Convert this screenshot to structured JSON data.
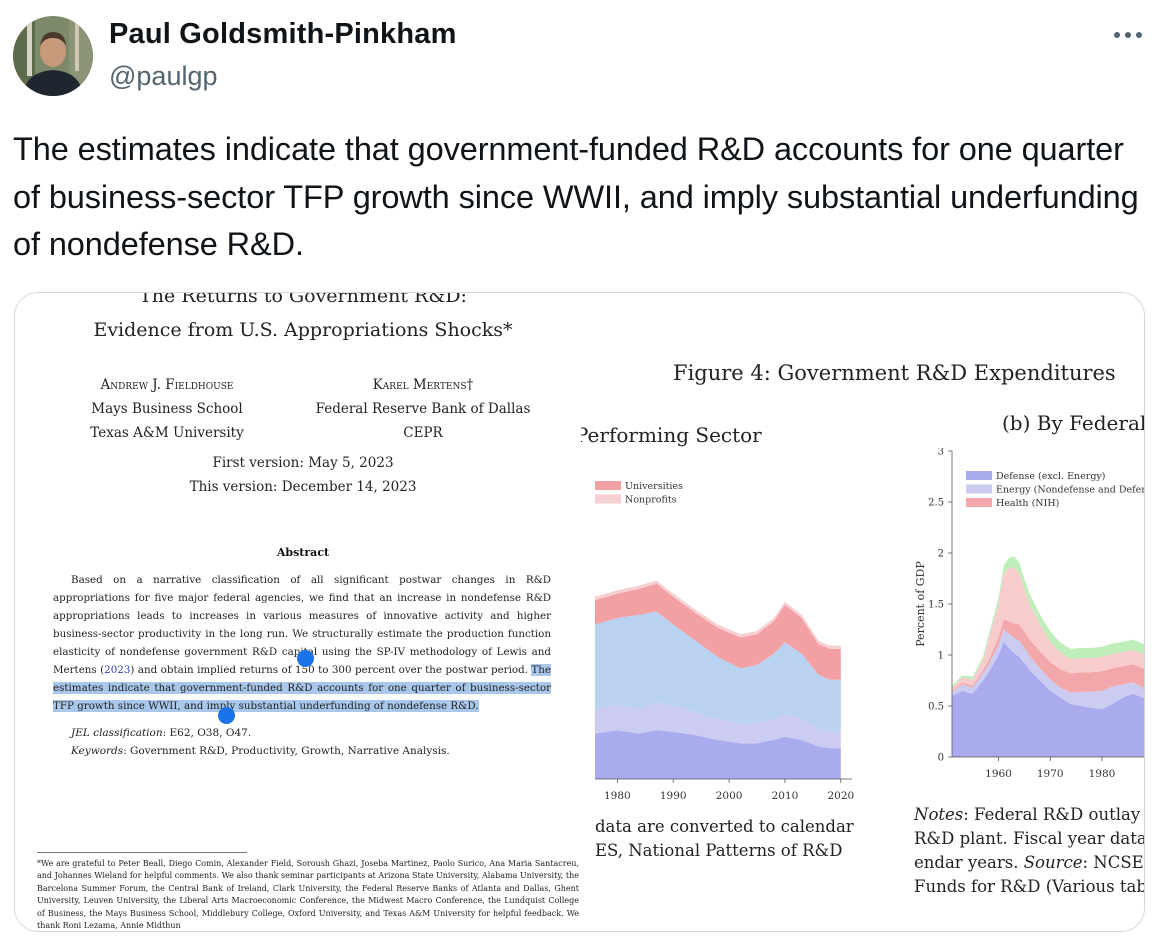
{
  "author": {
    "name": "Paul Goldsmith-Pinkham",
    "handle": "@paulgp"
  },
  "tweet": {
    "text": "The estimates indicate that government-funded R&D accounts for one quarter of business-sector TFP growth since WWII, and imply substantial underfunding of nondefense R&D."
  },
  "icons": {
    "more": "more-horizontal-icon",
    "avatar": "profile-photo"
  },
  "colors": {
    "highlight": "#a9c7ea",
    "handle": "#1a73e8",
    "border": "#cfd9de",
    "muted": "#536471"
  },
  "paper": {
    "title_line1": "The Returns to Government R&D:",
    "title_line2": "Evidence from U.S. Appropriations Shocks*",
    "author1": {
      "name": "Andrew J. Fieldhouse",
      "affil1": "Mays Business School",
      "affil2": "Texas A&M University"
    },
    "author2": {
      "name": "Karel Mertens†",
      "affil1": "Federal Reserve Bank of Dallas",
      "affil2": "CEPR"
    },
    "first_version": "First version: May 5, 2023",
    "this_version": "This version: December 14, 2023",
    "abstract_heading": "Abstract",
    "abstract_part1": "Based on a narrative classification of all significant postwar changes in R&D appropriations for five major federal agencies, we find that an increase in nondefense R&D appropriations leads to increases in various measures of innovative activity and higher business-sector productivity in the long run. We structurally estimate the production function elasticity of nondefense government R&D capital using the SP-IV methodology of Lewis and Mertens (",
    "abstract_cite": "2023",
    "abstract_part2": ") and obtain implied returns of 150 to 300 percent over the postwar period. ",
    "abstract_highlight": "The estimates indicate that government-funded R&D accounts for one quarter of business-sector TFP growth since WWII, and imply substantial underfunding of nondefense R&D.",
    "jel_label": "JEL classification",
    "jel_value": ": E62, O38, O47.",
    "keywords_label": "Keywords",
    "keywords_value": ": Government R&D, Productivity, Growth, Narrative Analysis.",
    "footnote": "*We are grateful to Peter Beall, Diego Comin, Alexander Field, Soroush Ghazi, Joseba Martinez, Paolo Surico, Ana Maria Santacreu, and Johannes Wieland for helpful comments. We also thank seminar participants at Arizona State University, Alabama University, the Barcelona Summer Forum, the Central Bank of Ireland, Clark University, the Federal Reserve Banks of Atlanta and Dallas, Ghent University, Leuven University, the Liberal Arts Macroeconomic Conference, the Midwest Macro Conference, the Lundquist College of Business, the Mays Business School, Middlebury College, Oxford University, and Texas A&M University for helpful feedback. We thank Roni Lezama, Annie Midthun"
  },
  "figure": {
    "title": "Figure 4: Government R&D Expenditures",
    "panel_a_title": "Performing Sector",
    "panel_b_title": "(b) By Federal",
    "notes_left_line1": "data are converted to calendar",
    "notes_left_line2": "ES, National Patterns of R&D",
    "notes_right_line1_label": "Notes",
    "notes_right_line1": ": Federal R&D outlay",
    "notes_right_line2": "R&D plant. Fiscal year data",
    "notes_right_line3_a": "endar years. ",
    "notes_right_line3_label": "Source",
    "notes_right_line3_b": ": NCSE",
    "notes_right_line4": "Funds for R&D (Various tab"
  },
  "chart_data": [
    {
      "type": "area",
      "title": "Performing Sector",
      "xlabel": "",
      "ylabel": "",
      "x_ticks": [
        "1980",
        "1990",
        "2000",
        "2010",
        "2020"
      ],
      "xlim": [
        1976,
        2022
      ],
      "ylim": [
        0,
        1.5
      ],
      "legend": {
        "position": "top-left",
        "entries": [
          "Universities",
          "Nonprofits"
        ]
      },
      "x": [
        1976,
        1980,
        1984,
        1987,
        1990,
        1994,
        1998,
        2002,
        2005,
        2008,
        2010,
        2013,
        2016,
        2018,
        2020
      ],
      "series": [
        {
          "name": "",
          "color": "#aaaaee",
          "values": [
            0.28,
            0.3,
            0.28,
            0.3,
            0.29,
            0.27,
            0.24,
            0.22,
            0.22,
            0.24,
            0.26,
            0.24,
            0.2,
            0.19,
            0.19
          ]
        },
        {
          "name": "",
          "color": "#ccccf2",
          "values": [
            0.15,
            0.16,
            0.15,
            0.17,
            0.16,
            0.14,
            0.13,
            0.12,
            0.12,
            0.13,
            0.14,
            0.13,
            0.11,
            0.1,
            0.1
          ]
        },
        {
          "name": "",
          "color": "#b9d2f2",
          "values": [
            0.52,
            0.53,
            0.58,
            0.56,
            0.5,
            0.44,
            0.38,
            0.34,
            0.36,
            0.4,
            0.44,
            0.4,
            0.33,
            0.32,
            0.32
          ]
        },
        {
          "name": "Universities",
          "color": "#f2a0a4",
          "values": [
            0.15,
            0.15,
            0.16,
            0.17,
            0.17,
            0.17,
            0.18,
            0.19,
            0.19,
            0.2,
            0.23,
            0.22,
            0.19,
            0.19,
            0.19
          ]
        },
        {
          "name": "Nonprofits",
          "color": "#f6cfd2",
          "values": [
            0.02,
            0.02,
            0.02,
            0.02,
            0.02,
            0.02,
            0.02,
            0.02,
            0.02,
            0.02,
            0.02,
            0.02,
            0.02,
            0.02,
            0.02
          ]
        }
      ]
    },
    {
      "type": "area",
      "title": "(b) By Federal",
      "xlabel": "",
      "ylabel": "Percent of GDP",
      "y_ticks": [
        "0",
        "0.5",
        "1",
        "1.5",
        "2",
        "2.5",
        "3"
      ],
      "x_ticks": [
        "1960",
        "1970",
        "1980"
      ],
      "xlim": [
        1951,
        1992
      ],
      "ylim": [
        0,
        3
      ],
      "legend": {
        "position": "top-left",
        "entries": [
          "Defense (excl. Energy)",
          "Energy (Nondefense and Defense)",
          "Health (NIH)"
        ]
      },
      "x": [
        1951,
        1953,
        1955,
        1957,
        1958,
        1960,
        1961,
        1962,
        1963,
        1964,
        1965,
        1966,
        1968,
        1970,
        1972,
        1974,
        1976,
        1978,
        1980,
        1982,
        1984,
        1986,
        1988,
        1990,
        1992
      ],
      "series": [
        {
          "name": "Defense (excl. Energy)",
          "color": "#aaaaee",
          "values": [
            0.6,
            0.65,
            0.62,
            0.75,
            0.82,
            1.0,
            1.13,
            1.07,
            1.02,
            0.98,
            0.92,
            0.85,
            0.75,
            0.65,
            0.58,
            0.52,
            0.5,
            0.48,
            0.47,
            0.52,
            0.58,
            0.62,
            0.58,
            0.55,
            0.6
          ]
        },
        {
          "name": "Energy (Nondefense and Defense)",
          "color": "#ccccf2",
          "values": [
            0.04,
            0.06,
            0.06,
            0.07,
            0.08,
            0.1,
            0.12,
            0.14,
            0.15,
            0.16,
            0.15,
            0.14,
            0.12,
            0.11,
            0.1,
            0.11,
            0.14,
            0.16,
            0.18,
            0.17,
            0.13,
            0.11,
            0.1,
            0.1,
            0.1
          ]
        },
        {
          "name": "Health (NIH)",
          "color": "#f2a8aa",
          "values": [
            0.01,
            0.02,
            0.02,
            0.03,
            0.04,
            0.07,
            0.1,
            0.12,
            0.14,
            0.16,
            0.16,
            0.16,
            0.17,
            0.17,
            0.18,
            0.19,
            0.19,
            0.19,
            0.19,
            0.18,
            0.18,
            0.18,
            0.19,
            0.2,
            0.22
          ]
        },
        {
          "name": "",
          "color": "#f8cccc",
          "values": [
            0.03,
            0.05,
            0.06,
            0.1,
            0.2,
            0.33,
            0.45,
            0.52,
            0.55,
            0.5,
            0.42,
            0.35,
            0.26,
            0.2,
            0.16,
            0.14,
            0.14,
            0.14,
            0.14,
            0.14,
            0.14,
            0.14,
            0.14,
            0.14,
            0.13
          ]
        },
        {
          "name": "",
          "color": "#bfeebb",
          "values": [
            0.02,
            0.02,
            0.03,
            0.03,
            0.04,
            0.06,
            0.08,
            0.1,
            0.11,
            0.11,
            0.1,
            0.1,
            0.1,
            0.1,
            0.1,
            0.1,
            0.1,
            0.1,
            0.1,
            0.1,
            0.1,
            0.1,
            0.1,
            0.1,
            0.1
          ]
        }
      ]
    }
  ]
}
